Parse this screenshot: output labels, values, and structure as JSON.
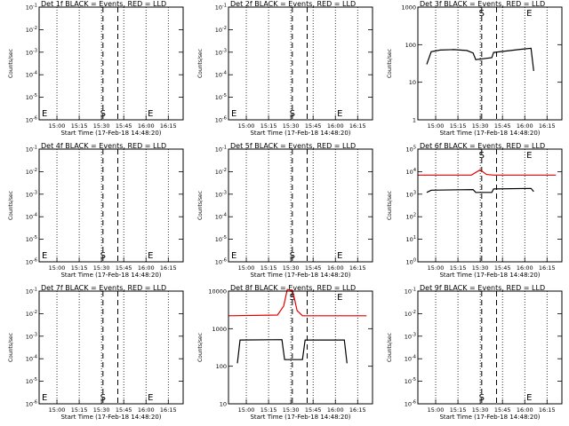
{
  "chart_data": [
    {
      "type": "line",
      "title": "Det 1f BLACK = Events, RED = LLD",
      "xlabel": "Start Time (17-Feb-18 14:48:20)",
      "ylabel": "Counts/sec",
      "x_ticks": [
        "15:00",
        "15:15",
        "15:30",
        "15:45",
        "16:00",
        "16:15"
      ],
      "y_ticks": [
        "10^-1",
        "10^-2",
        "10^-3",
        "10^-4",
        "10^-5",
        "10^-6"
      ],
      "markers": [
        {
          "label": "E",
          "x": "14:48"
        },
        {
          "label": "S",
          "x": "15:31"
        },
        {
          "label": "E",
          "x": "16:03"
        }
      ],
      "events": [],
      "lld": []
    },
    {
      "type": "line",
      "title": "Det 2f BLACK = Events, RED = LLD",
      "xlabel": "Start Time (17-Feb-18 14:48:20)",
      "ylabel": "Counts/sec",
      "x_ticks": [
        "15:00",
        "15:15",
        "15:30",
        "15:45",
        "16:00",
        "16:15"
      ],
      "y_ticks": [
        "10^-1",
        "10^-2",
        "10^-3",
        "10^-4",
        "10^-5",
        "10^-6"
      ],
      "markers": [
        {
          "label": "E",
          "x": "14:48"
        },
        {
          "label": "S",
          "x": "15:31"
        },
        {
          "label": "E",
          "x": "16:03"
        }
      ],
      "events": [],
      "lld": []
    },
    {
      "type": "line",
      "title": "Det 3f BLACK = Events, RED = LLD",
      "xlabel": "Start Time (17-Feb-18 14:48:20)",
      "ylabel": "Counts/sec",
      "x_ticks": [
        "15:00",
        "15:15",
        "15:30",
        "15:45",
        "16:00",
        "16:15"
      ],
      "y_ticks": [
        "1000",
        "100",
        "10",
        "1"
      ],
      "markers": [
        {
          "label": "S",
          "x": "15:31"
        },
        {
          "label": "E",
          "x": "16:03"
        }
      ],
      "events": [
        [
          14.9,
          30
        ],
        [
          14.95,
          65
        ],
        [
          15.05,
          72
        ],
        [
          15.2,
          74
        ],
        [
          15.35,
          70
        ],
        [
          15.42,
          60
        ],
        [
          15.45,
          40
        ],
        [
          15.63,
          45
        ],
        [
          15.65,
          62
        ],
        [
          15.8,
          68
        ],
        [
          15.95,
          75
        ],
        [
          16.07,
          80
        ],
        [
          16.1,
          20
        ]
      ],
      "lld": []
    },
    {
      "type": "line",
      "title": "Det 4f BLACK = Events, RED = LLD",
      "xlabel": "Start Time (17-Feb-18 14:48:20)",
      "ylabel": "Counts/sec",
      "x_ticks": [
        "15:00",
        "15:15",
        "15:30",
        "15:45",
        "16:00",
        "16:15"
      ],
      "y_ticks": [
        "10^-1",
        "10^-2",
        "10^-3",
        "10^-4",
        "10^-5",
        "10^-6"
      ],
      "markers": [
        {
          "label": "E",
          "x": "14:48"
        },
        {
          "label": "S",
          "x": "15:31"
        },
        {
          "label": "E",
          "x": "16:03"
        }
      ],
      "events": [],
      "lld": []
    },
    {
      "type": "line",
      "title": "Det 5f BLACK = Events, RED = LLD",
      "xlabel": "Start Time (17-Feb-18 14:48:20)",
      "ylabel": "Counts/sec",
      "x_ticks": [
        "15:00",
        "15:15",
        "15:30",
        "15:45",
        "16:00",
        "16:15"
      ],
      "y_ticks": [
        "10^-1",
        "10^-2",
        "10^-3",
        "10^-4",
        "10^-5",
        "10^-6"
      ],
      "markers": [
        {
          "label": "E",
          "x": "14:48"
        },
        {
          "label": "S",
          "x": "15:31"
        },
        {
          "label": "E",
          "x": "16:03"
        }
      ],
      "events": [],
      "lld": []
    },
    {
      "type": "line",
      "title": "Det 6f BLACK = Events, RED = LLD",
      "xlabel": "Start Time (17-Feb-18 14:48:20)",
      "ylabel": "Counts/sec",
      "x_ticks": [
        "15:00",
        "15:15",
        "15:30",
        "15:45",
        "16:00",
        "16:15"
      ],
      "y_ticks": [
        "10^5",
        "10^4",
        "10^3",
        "10^2",
        "10^1",
        "10^0"
      ],
      "markers": [
        {
          "label": "S",
          "x": "15:31"
        },
        {
          "label": "E",
          "x": "16:03"
        }
      ],
      "events": [
        [
          14.9,
          1200
        ],
        [
          14.95,
          1500
        ],
        [
          15.42,
          1600
        ],
        [
          15.45,
          1200
        ],
        [
          15.63,
          1200
        ],
        [
          15.65,
          1700
        ],
        [
          16.07,
          1800
        ],
        [
          16.1,
          1300
        ]
      ],
      "lld": [
        [
          14.8,
          7000
        ],
        [
          15.4,
          7000
        ],
        [
          15.5,
          12000
        ],
        [
          15.57,
          7500
        ],
        [
          15.65,
          7000
        ],
        [
          16.35,
          7000
        ]
      ]
    },
    {
      "type": "line",
      "title": "Det 7f BLACK = Events, RED = LLD",
      "xlabel": "Start Time (17-Feb-18 14:48:20)",
      "ylabel": "Counts/sec",
      "x_ticks": [
        "15:00",
        "15:15",
        "15:30",
        "15:45",
        "16:00",
        "16:15"
      ],
      "y_ticks": [
        "10^-1",
        "10^-2",
        "10^-3",
        "10^-4",
        "10^-5",
        "10^-6"
      ],
      "markers": [
        {
          "label": "E",
          "x": "14:48"
        },
        {
          "label": "S",
          "x": "15:31"
        },
        {
          "label": "E",
          "x": "16:03"
        }
      ],
      "events": [],
      "lld": []
    },
    {
      "type": "line",
      "title": "Det 8f BLACK = Events, RED = LLD",
      "xlabel": "Start Time (17-Feb-18 14:48:20)",
      "ylabel": "Counts/sec",
      "x_ticks": [
        "15:00",
        "15:15",
        "15:30",
        "15:45",
        "16:00",
        "16:15"
      ],
      "y_ticks": [
        "10000",
        "1000",
        "100",
        "10"
      ],
      "markers": [
        {
          "label": "S",
          "x": "15:31"
        },
        {
          "label": "E",
          "x": "16:03"
        }
      ],
      "events": [
        [
          14.9,
          120
        ],
        [
          14.93,
          500
        ],
        [
          15.4,
          510
        ],
        [
          15.43,
          150
        ],
        [
          15.63,
          150
        ],
        [
          15.66,
          500
        ],
        [
          16.1,
          500
        ],
        [
          16.13,
          120
        ]
      ],
      "lld": [
        [
          14.8,
          2200
        ],
        [
          15.35,
          2300
        ],
        [
          15.42,
          4000
        ],
        [
          15.46,
          11000
        ],
        [
          15.52,
          10500
        ],
        [
          15.57,
          3000
        ],
        [
          15.63,
          2200
        ],
        [
          16.35,
          2200
        ]
      ]
    },
    {
      "type": "line",
      "title": "Det 9f BLACK = Events, RED = LLD",
      "xlabel": "Start Time (17-Feb-18 14:48:20)",
      "ylabel": "Counts/sec",
      "x_ticks": [
        "15:00",
        "15:15",
        "15:30",
        "15:45",
        "16:00",
        "16:15"
      ],
      "y_ticks": [
        "10^-1",
        "10^-2",
        "10^-3",
        "10^-4",
        "10^-5",
        "10^-6"
      ],
      "markers": [
        {
          "label": "S",
          "x": "15:31"
        },
        {
          "label": "E",
          "x": "16:03"
        }
      ],
      "events": [],
      "lld": []
    }
  ]
}
